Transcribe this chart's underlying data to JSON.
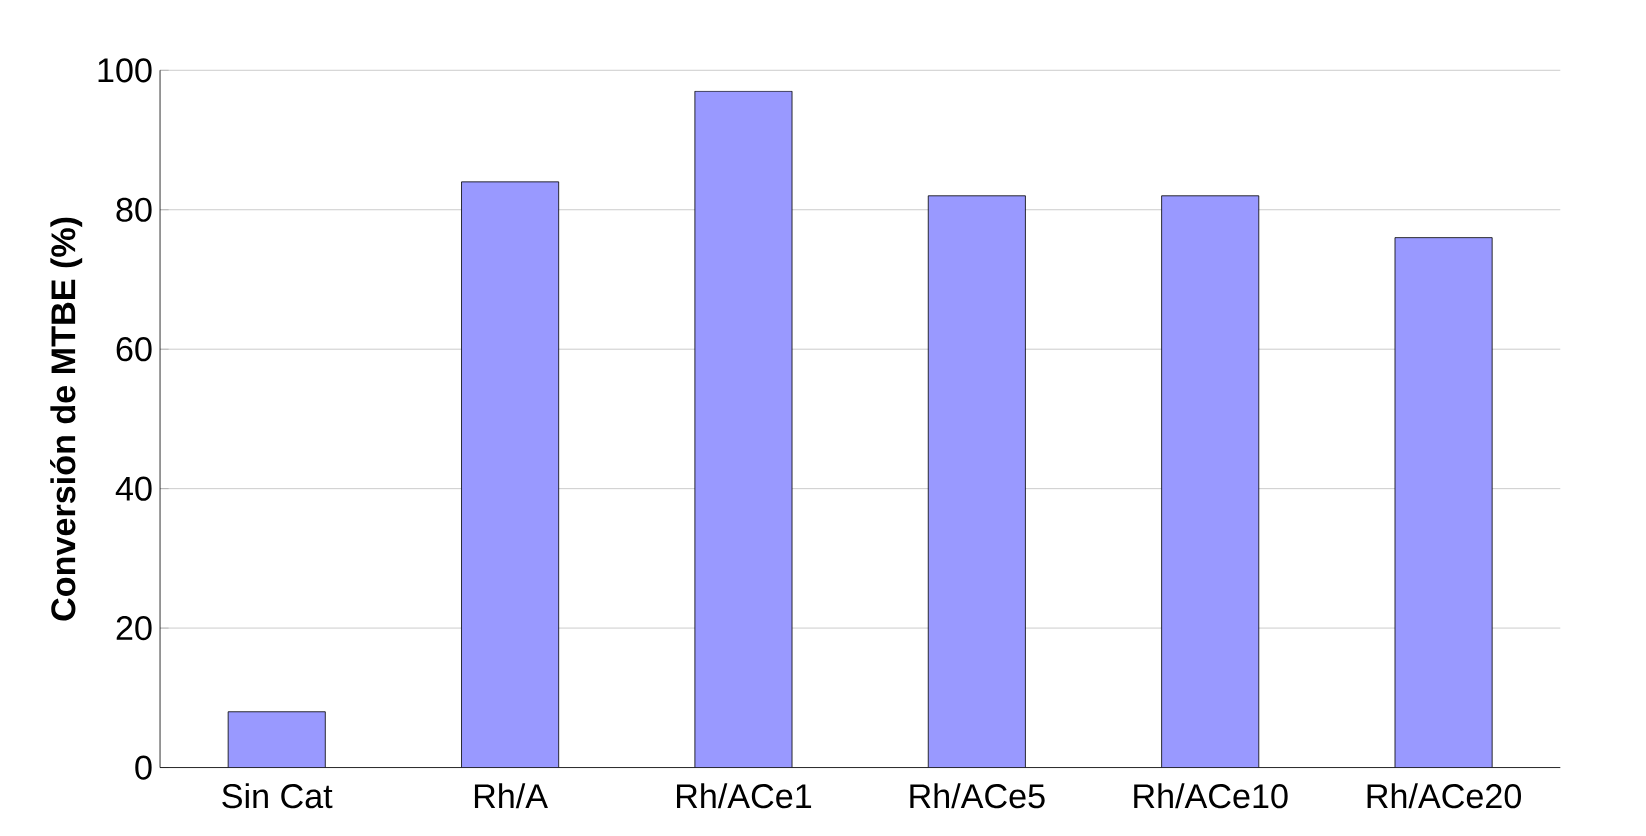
{
  "chart_data": {
    "type": "bar",
    "ylabel": "Conversión de MTBE   (%)",
    "categories": [
      "Sin Cat",
      "Rh/A",
      "Rh/ACe1",
      "Rh/ACe5",
      "Rh/ACe10",
      "Rh/ACe20"
    ],
    "values": [
      8,
      84,
      97,
      82,
      82,
      76
    ],
    "color": "#9999ff",
    "ylim": [
      0,
      100
    ],
    "yticks": [
      0,
      20,
      40,
      60,
      80,
      100
    ],
    "grid": "y"
  }
}
